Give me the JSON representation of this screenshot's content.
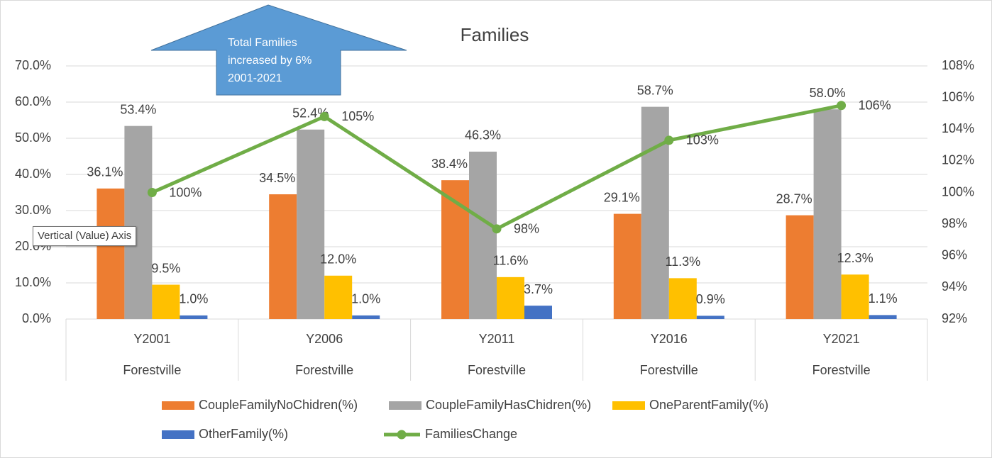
{
  "chart_data": {
    "type": "bar",
    "title": "Families",
    "categories": [
      "Y2001",
      "Y2006",
      "Y2011",
      "Y2016",
      "Y2021"
    ],
    "subcategory_labels": [
      "Forestville",
      "Forestville",
      "Forestville",
      "Forestville",
      "Forestville"
    ],
    "series": [
      {
        "name": "CoupleFamilyNoChidren(%)",
        "type": "bar",
        "axis": "left",
        "color": "#ED7D31",
        "values": [
          36.1,
          34.5,
          38.4,
          29.1,
          28.7
        ],
        "labels": [
          "36.1%",
          "34.5%",
          "38.4%",
          "29.1%",
          "28.7%"
        ]
      },
      {
        "name": "CoupleFamilyHasChidren(%)",
        "type": "bar",
        "axis": "left",
        "color": "#A5A5A5",
        "values": [
          53.4,
          52.4,
          46.3,
          58.7,
          58.0
        ],
        "labels": [
          "53.4%",
          "52.4%",
          "46.3%",
          "58.7%",
          "58.0%"
        ]
      },
      {
        "name": "OneParentFamily(%)",
        "type": "bar",
        "axis": "left",
        "color": "#FFC000",
        "values": [
          9.5,
          12.0,
          11.6,
          11.3,
          12.3
        ],
        "labels": [
          "9.5%",
          "12.0%",
          "11.6%",
          "11.3%",
          "12.3%"
        ]
      },
      {
        "name": "OtherFamily(%)",
        "type": "bar",
        "axis": "left",
        "color": "#4472C4",
        "values": [
          1.0,
          1.0,
          3.7,
          0.9,
          1.1
        ],
        "labels": [
          "1.0%",
          "1.0%",
          "3.7%",
          "0.9%",
          "1.1%"
        ]
      },
      {
        "name": "FamiliesChange",
        "type": "line",
        "axis": "right",
        "color": "#70AD47",
        "values": [
          100,
          104.8,
          97.7,
          103.3,
          105.5
        ],
        "labels": [
          "100%",
          "105%",
          "98%",
          "103%",
          "106%"
        ]
      }
    ],
    "y_left": {
      "range": [
        0,
        70
      ],
      "ticks": [
        "0.0%",
        "10.0%",
        "20.0%",
        "30.0%",
        "40.0%",
        "50.0%",
        "60.0%",
        "70.0%"
      ]
    },
    "y_right": {
      "range": [
        92,
        108
      ],
      "ticks": [
        "92%",
        "94%",
        "96%",
        "98%",
        "100%",
        "102%",
        "104%",
        "106%",
        "108%"
      ]
    },
    "grid": true,
    "legend_position": "bottom",
    "annotation": {
      "text": "Total Families increased by 6% 2001-2021",
      "shape": "up-arrow",
      "color": "#5B9BD5"
    }
  },
  "tooltip": {
    "text": "Vertical (Value) Axis"
  }
}
